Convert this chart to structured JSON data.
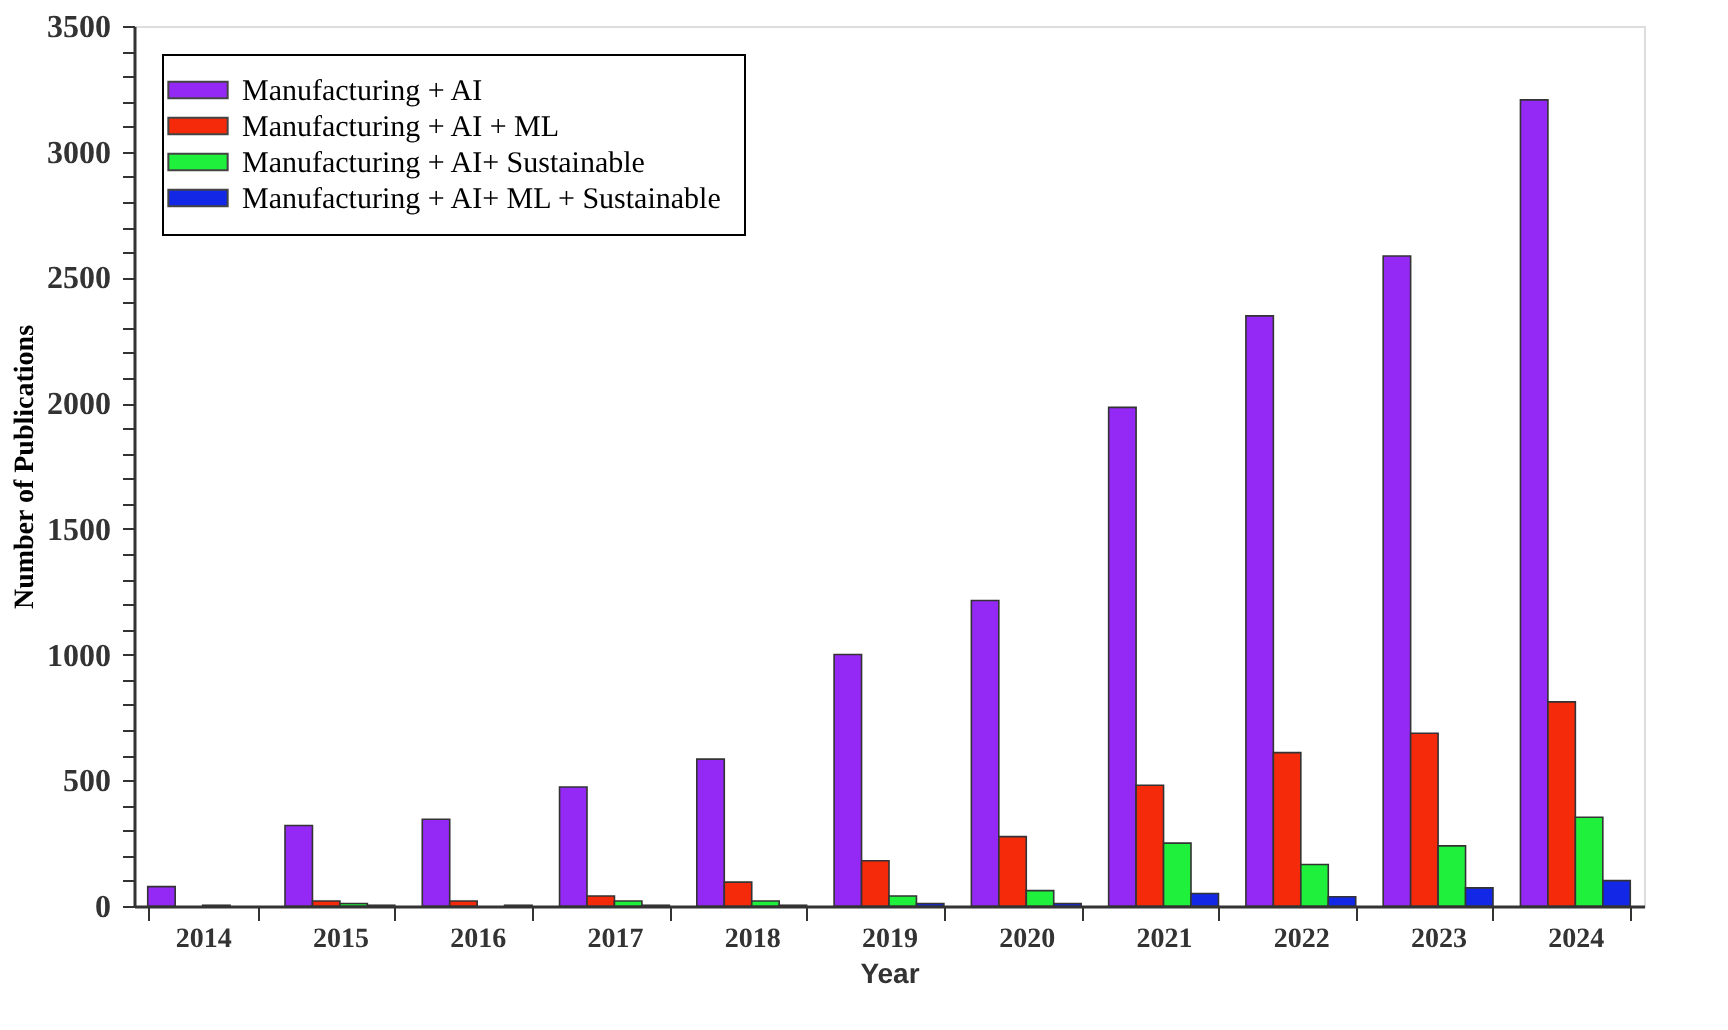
{
  "chart_data": {
    "type": "bar",
    "xlabel": "Year",
    "ylabel": "Number of Publications",
    "categories": [
      "2014",
      "2015",
      "2016",
      "2017",
      "2018",
      "2019",
      "2020",
      "2021",
      "2022",
      "2023",
      "2024"
    ],
    "series": [
      {
        "name": "Manufacturing + AI",
        "color": "#9428f5",
        "values": [
          77,
          320,
          345,
          473,
          584,
          1000,
          1215,
          1983,
          2347,
          2585,
          3206
        ]
      },
      {
        "name": "Manufacturing + AI + ML",
        "color": "#f52a0a",
        "values": [
          null,
          20,
          20,
          40,
          95,
          180,
          276,
          480,
          610,
          687,
          812
        ]
      },
      {
        "name": "Manufacturing + AI+ Sustainable",
        "color": "#1ef03c",
        "values": [
          3,
          10,
          null,
          20,
          20,
          40,
          61,
          250,
          165,
          239,
          353
        ]
      },
      {
        "name": "Manufacturing + AI+ ML + Sustainable",
        "color": "#1228e6",
        "values": [
          null,
          3,
          3,
          3,
          3,
          10,
          10,
          50,
          37,
          72,
          101
        ]
      }
    ],
    "ylim": [
      0,
      3500
    ],
    "yticks": [
      0,
      {
        "value": 100,
        "label": null
      },
      {
        "value": 200,
        "label": null
      },
      {
        "value": 300,
        "label": null
      },
      {
        "value": 400,
        "label": null
      },
      500,
      {
        "value": 600,
        "label": null
      },
      {
        "value": 700,
        "label": null
      },
      {
        "value": 800,
        "label": null
      },
      {
        "value": 900,
        "label": null
      },
      1000,
      {
        "value": 1100,
        "label": null
      },
      {
        "value": 1200,
        "label": null
      },
      {
        "value": 1300,
        "label": null
      },
      {
        "value": 1400,
        "label": null
      },
      1500,
      {
        "value": 1600,
        "label": null
      },
      {
        "value": 1700,
        "label": null
      },
      {
        "value": 1800,
        "label": null
      },
      {
        "value": 1900,
        "label": null
      },
      2000,
      {
        "value": 2100,
        "label": null
      },
      {
        "value": 2200,
        "label": null
      },
      {
        "value": 2300,
        "label": null
      },
      {
        "value": 2400,
        "label": null
      },
      2500,
      {
        "value": 2600,
        "label": null
      },
      {
        "value": 2700,
        "label": null
      },
      {
        "value": 2800,
        "label": null
      },
      {
        "value": 2900,
        "label": null
      },
      3000,
      {
        "value": 3100,
        "label": null
      },
      {
        "value": 3200,
        "label": null
      },
      {
        "value": 3300,
        "label": null
      },
      {
        "value": 3400,
        "label": null
      },
      3500
    ],
    "grid": false,
    "legend": "top left"
  }
}
